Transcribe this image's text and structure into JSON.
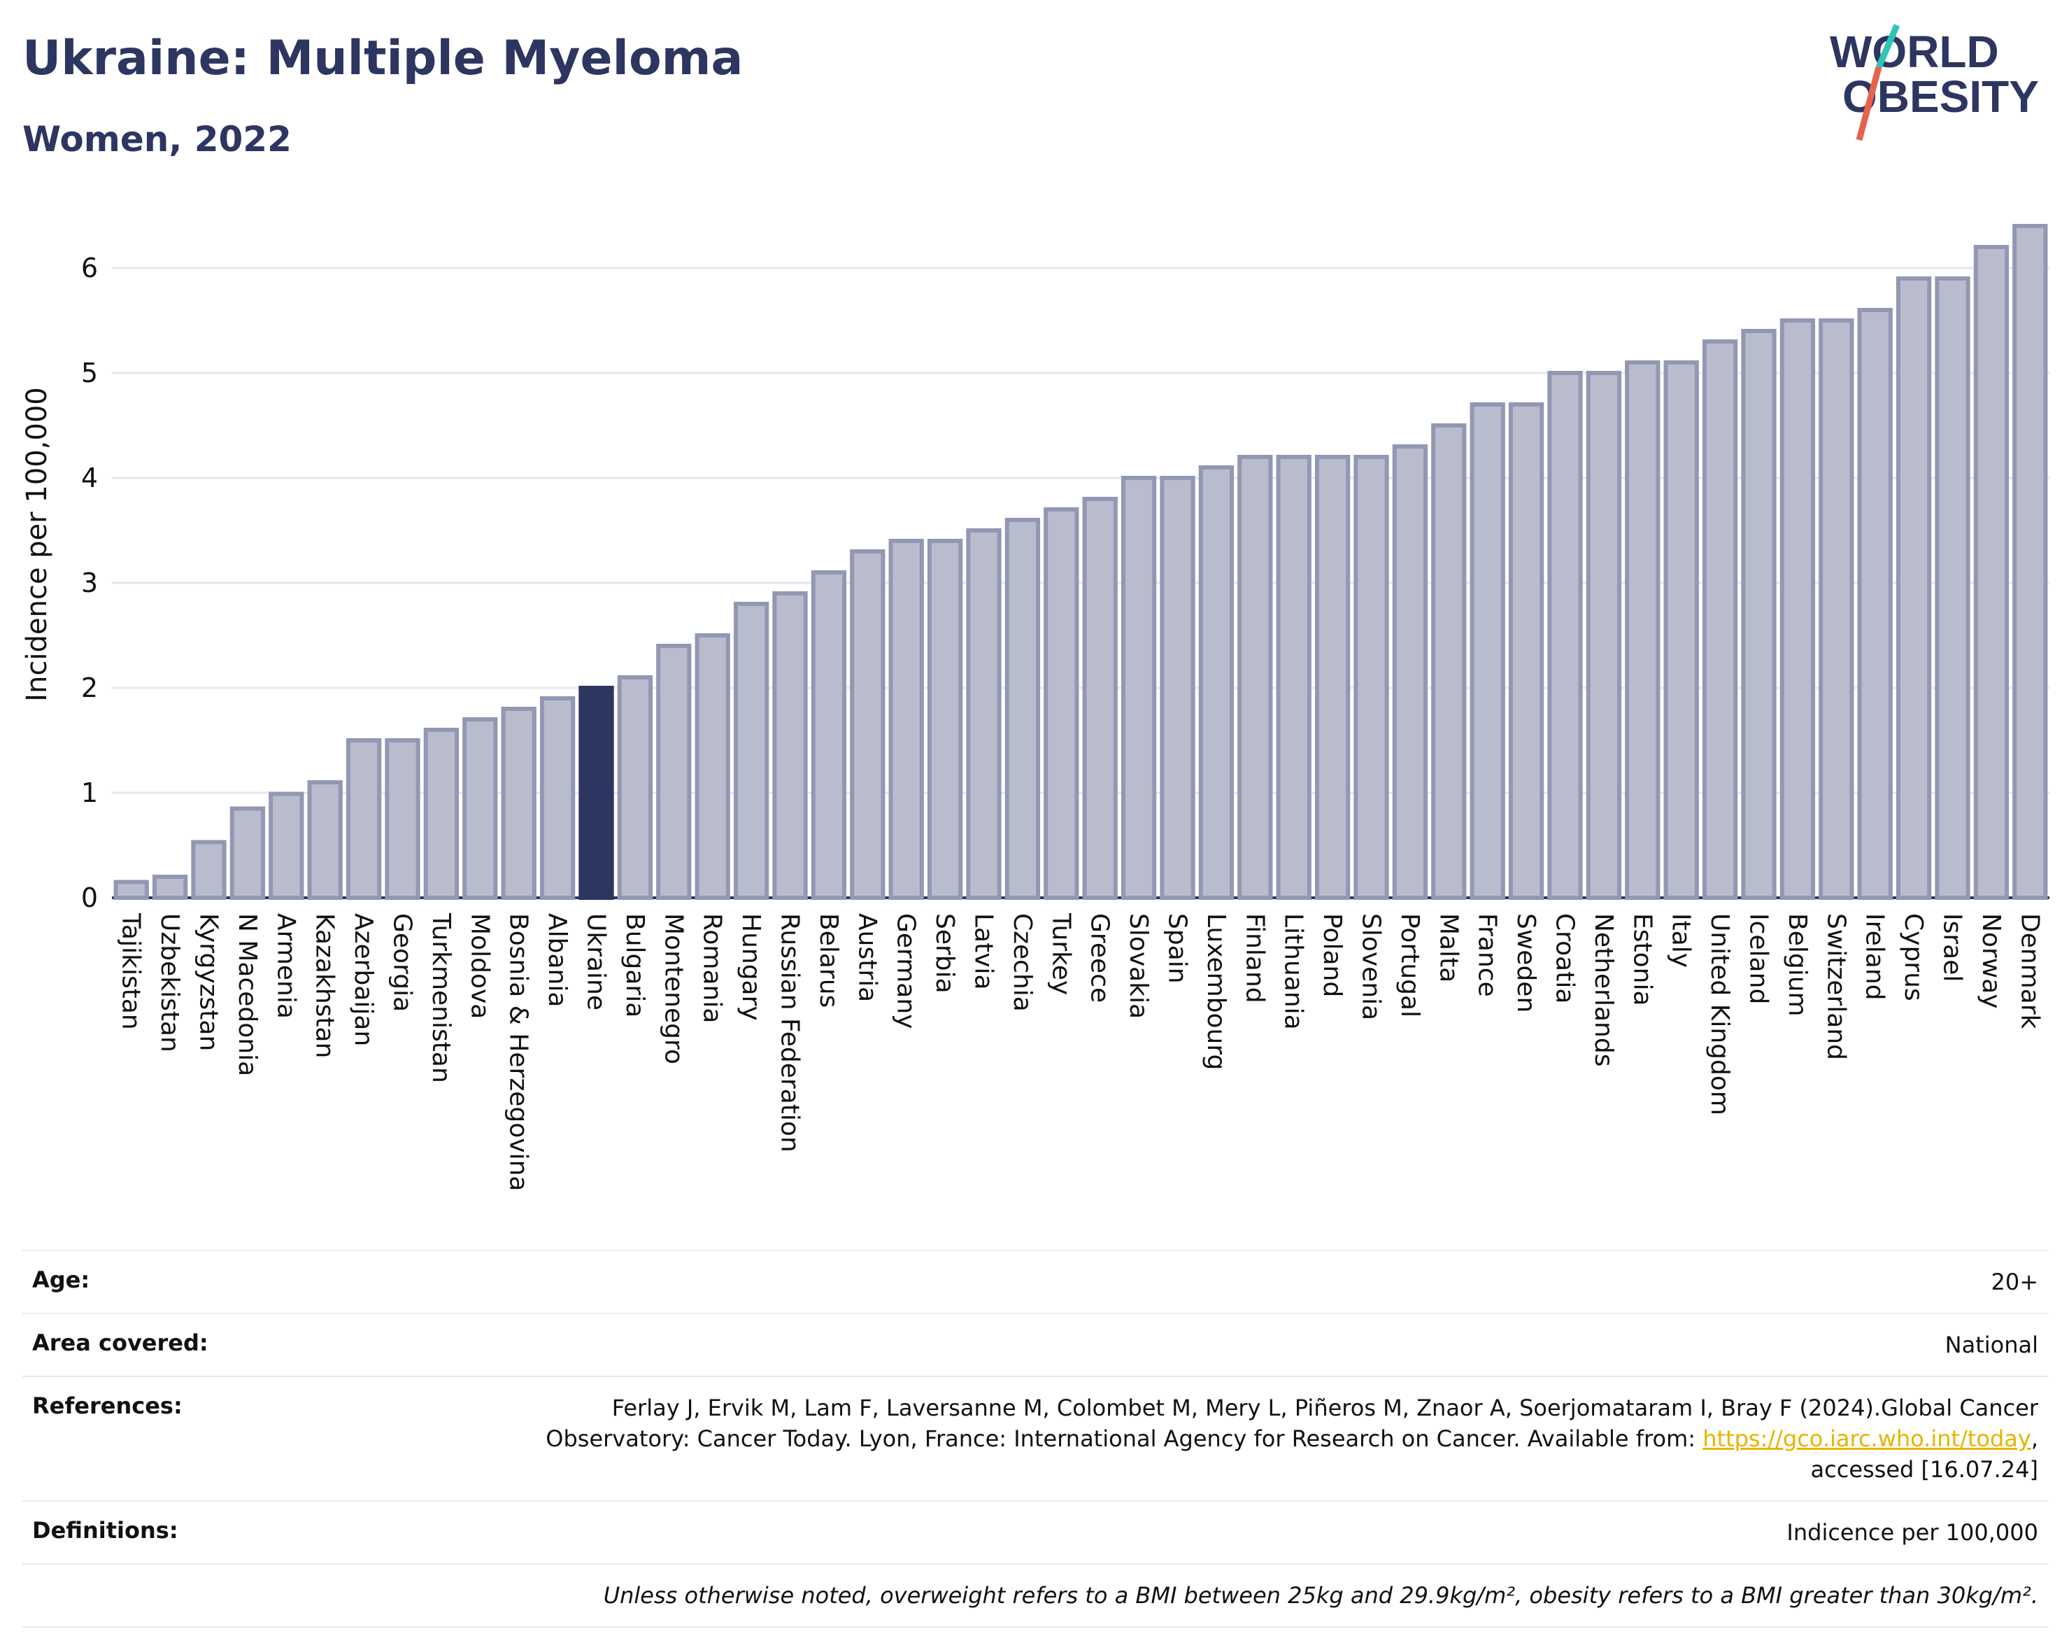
{
  "header": {
    "title": "Ukraine: Multiple Myeloma",
    "subtitle": "Women, 2022"
  },
  "logo": {
    "line1": "WORLD",
    "line2": "OBESITY",
    "colors": {
      "text": "#2d3561",
      "slash_teal": "#2ec4b6",
      "slash_red": "#e8614d"
    }
  },
  "colors": {
    "bar": "#b9bccc",
    "bar_border": "#9297b3",
    "highlight": "#2d3561",
    "grid": "#e6e6ee",
    "axis": "#2d3561"
  },
  "chart_data": {
    "type": "bar",
    "title": "Ukraine: Multiple Myeloma",
    "subtitle": "Women, 2022",
    "xlabel": "",
    "ylabel": "Incidence per 100,000",
    "ylim": [
      0,
      6.5
    ],
    "yticks": [
      0,
      1,
      2,
      3,
      4,
      5,
      6
    ],
    "grid": true,
    "highlight": "Ukraine",
    "categories": [
      "Tajikistan",
      "Uzbekistan",
      "Kyrgyzstan",
      "N Macedonia",
      "Armenia",
      "Kazakhstan",
      "Azerbaijan",
      "Georgia",
      "Turkmenistan",
      "Moldova",
      "Bosnia & Herzegovina",
      "Albania",
      "Ukraine",
      "Bulgaria",
      "Montenegro",
      "Romania",
      "Hungary",
      "Russian Federation",
      "Belarus",
      "Austria",
      "Germany",
      "Serbia",
      "Latvia",
      "Czechia",
      "Turkey",
      "Greece",
      "Slovakia",
      "Spain",
      "Luxembourg",
      "Finland",
      "Lithuania",
      "Poland",
      "Slovenia",
      "Portugal",
      "Malta",
      "France",
      "Sweden",
      "Croatia",
      "Netherlands",
      "Estonia",
      "Italy",
      "United Kingdom",
      "Iceland",
      "Belgium",
      "Switzerland",
      "Ireland",
      "Cyprus",
      "Israel",
      "Norway",
      "Denmark"
    ],
    "values": [
      0.15,
      0.2,
      0.53,
      0.85,
      0.99,
      1.1,
      1.5,
      1.5,
      1.6,
      1.7,
      1.8,
      1.9,
      2.0,
      2.1,
      2.4,
      2.5,
      2.8,
      2.9,
      3.1,
      3.3,
      3.4,
      3.4,
      3.5,
      3.6,
      3.7,
      3.8,
      4.0,
      4.0,
      4.1,
      4.2,
      4.2,
      4.2,
      4.2,
      4.3,
      4.5,
      4.7,
      4.7,
      5.0,
      5.0,
      5.1,
      5.1,
      5.3,
      5.4,
      5.5,
      5.5,
      5.6,
      5.9,
      5.9,
      6.2,
      6.4
    ]
  },
  "info": {
    "age_label": "Age:",
    "age_value": "20+",
    "area_label": "Area covered:",
    "area_value": "National",
    "references_label": "References:",
    "references_text_1": "Ferlay J, Ervik M, Lam F, Laversanne M, Colombet M, Mery L, Piñeros M, Znaor A, Soerjomataram I, Bray F (2024).Global Cancer",
    "references_text_2": "Observatory: Cancer Today. Lyon, France: International Agency for Research on Cancer. Available from: ",
    "references_link": "https://gco.iarc.who.int/today",
    "references_text_3": ",",
    "references_text_4": "accessed [16.07.24]",
    "definitions_label": "Definitions:",
    "definitions_value": "Indicence per 100,000",
    "note": "Unless otherwise noted, overweight refers to a BMI between 25kg and 29.9kg/m², obesity refers to a BMI greater than 30kg/m²."
  }
}
